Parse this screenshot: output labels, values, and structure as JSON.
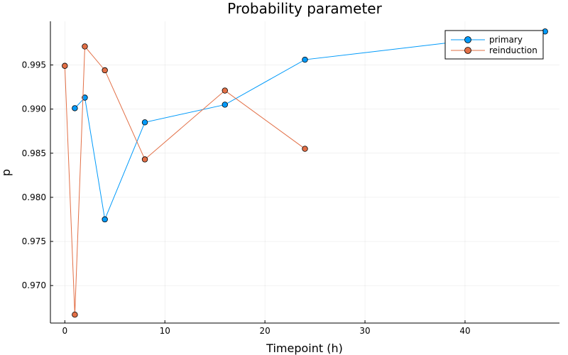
{
  "chart_data": {
    "type": "line",
    "title": "Probability parameter",
    "xlabel": "Timepoint (h)",
    "ylabel": "p",
    "xlim": [
      -1.44,
      49.44
    ],
    "ylim": [
      0.96575,
      0.99995
    ],
    "xticks": [
      0,
      10,
      20,
      30,
      40
    ],
    "yticks": [
      0.97,
      0.975,
      0.98,
      0.985,
      0.99,
      0.995
    ],
    "ytick_labels": [
      "0.970",
      "0.975",
      "0.980",
      "0.985",
      "0.990",
      "0.995"
    ],
    "grid": true,
    "legend_position": "top-right",
    "series": [
      {
        "name": "primary",
        "color": "#009AFA",
        "marker_color": "#009AFA",
        "x": [
          1,
          2,
          4,
          8,
          16,
          24,
          48
        ],
        "y": [
          0.9901,
          0.9913,
          0.9775,
          0.9885,
          0.9905,
          0.9956,
          0.9988
        ]
      },
      {
        "name": "reinduction",
        "color": "#E26F46",
        "marker_color": "#E26F46",
        "x": [
          0,
          1,
          2,
          4,
          8,
          16,
          24
        ],
        "y": [
          0.9949,
          0.9667,
          0.9971,
          0.9944,
          0.9843,
          0.9921,
          0.9855
        ]
      }
    ]
  }
}
